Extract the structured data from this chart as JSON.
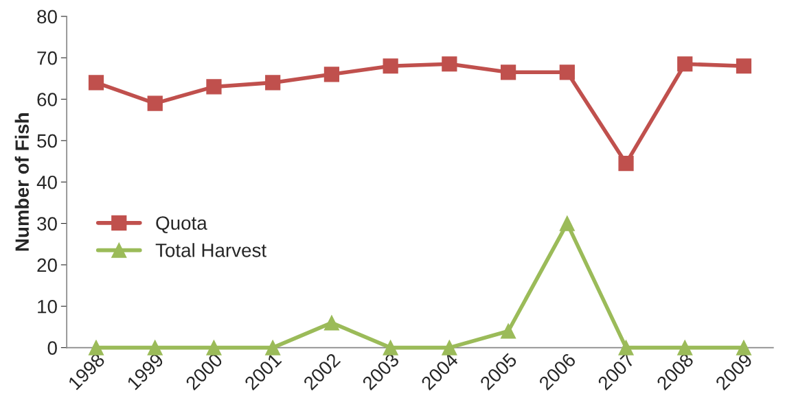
{
  "chart_data": {
    "type": "line",
    "ylabel": "Number of Fish",
    "categories": [
      "1998",
      "1999",
      "2000",
      "2001",
      "2002",
      "2003",
      "2004",
      "2005",
      "2006",
      "2007",
      "2008",
      "2009"
    ],
    "series": [
      {
        "name": "Quota",
        "color": "#c0504d",
        "marker": "square",
        "values": [
          64,
          59,
          63,
          64,
          66,
          68,
          68.5,
          66.5,
          66.5,
          44.5,
          68.5,
          68
        ]
      },
      {
        "name": "Total Harvest",
        "color": "#9bbb59",
        "marker": "triangle",
        "values": [
          0,
          0,
          0,
          0,
          6,
          0,
          0,
          4,
          30,
          0,
          0,
          0
        ]
      }
    ],
    "ylim": [
      0,
      80
    ],
    "yticks": [
      0,
      10,
      20,
      30,
      40,
      50,
      60,
      70,
      80
    ],
    "grid": false,
    "legend": "left"
  }
}
